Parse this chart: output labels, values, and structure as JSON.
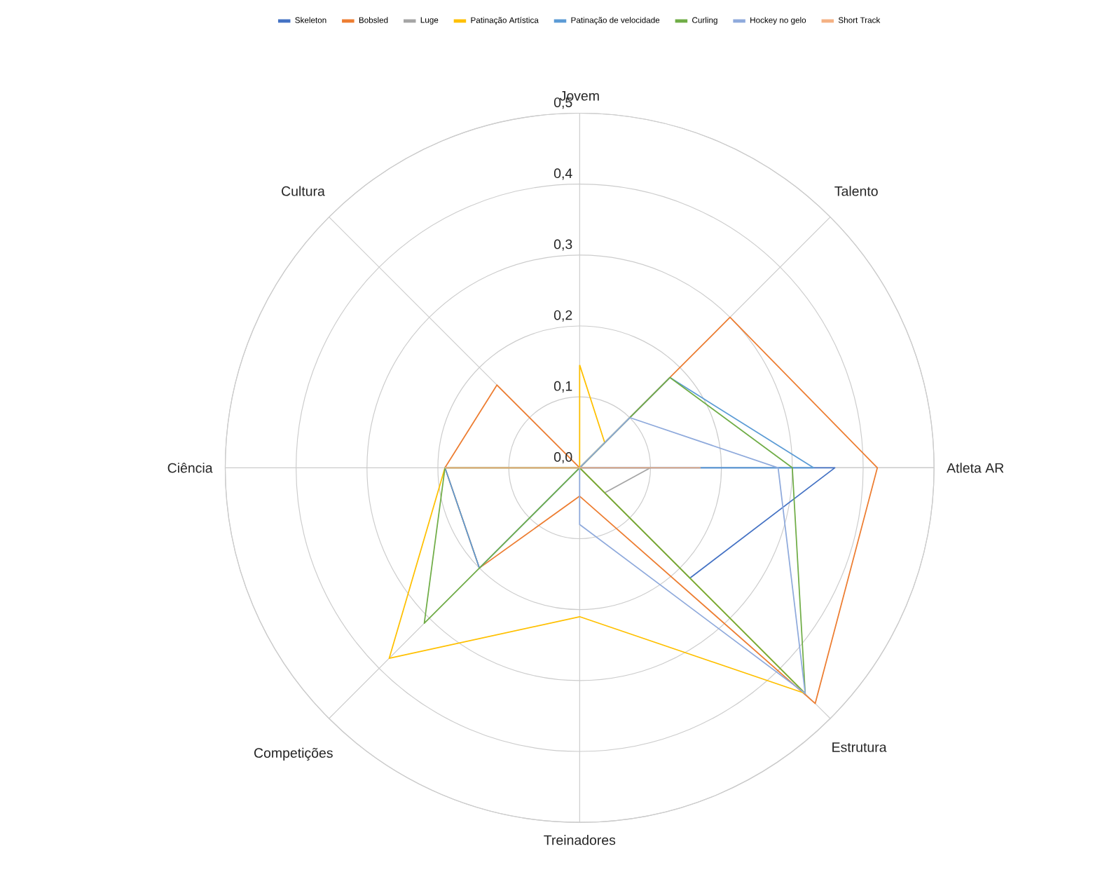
{
  "chart_data": {
    "type": "radar",
    "categories": [
      "Jovem",
      "Talento",
      "Atleta AR",
      "Estrutura",
      "Treinadores",
      "Competições",
      "Ciência",
      "Cultura"
    ],
    "series": [
      {
        "name": "Skeleton",
        "color": "#4472c4",
        "values": [
          0,
          0,
          0.36,
          0.22,
          0,
          0,
          0,
          0
        ]
      },
      {
        "name": "Bobsled",
        "color": "#ed7d31",
        "values": [
          0,
          0.3,
          0.42,
          0.47,
          0.04,
          0.2,
          0.19,
          0.165
        ]
      },
      {
        "name": "Luge",
        "color": "#a5a5a5",
        "values": [
          0,
          0,
          0.1,
          0.05,
          0,
          0,
          0,
          0
        ]
      },
      {
        "name": "Patinação Artística",
        "color": "#ffc000",
        "values": [
          0.145,
          0.05,
          0,
          0.45,
          0.21,
          0.38,
          0.19,
          0
        ]
      },
      {
        "name": "Patinação de velocidade",
        "color": "#5b9bd5",
        "values": [
          0,
          0.18,
          0.33,
          0,
          0,
          0.2,
          0.19,
          0
        ]
      },
      {
        "name": "Curling",
        "color": "#70ad47",
        "values": [
          0,
          0.18,
          0.3,
          0.45,
          0,
          0.31,
          0.19,
          0
        ]
      },
      {
        "name": "Hockey no gelo",
        "color": "#8faadc",
        "values": [
          0,
          0.1,
          0.28,
          0.45,
          0.08,
          0,
          0,
          0
        ]
      },
      {
        "name": "Short Track",
        "color": "#f4b183",
        "values": [
          0,
          0,
          0.17,
          0,
          0,
          0,
          0.19,
          0
        ]
      }
    ],
    "ylim": [
      0,
      0.5
    ],
    "yticks": [
      {
        "value": 0,
        "label": "0,0"
      },
      {
        "value": 0.1,
        "label": "0,1"
      },
      {
        "value": 0.2,
        "label": "0,2"
      },
      {
        "value": 0.3,
        "label": "0,3"
      },
      {
        "value": 0.4,
        "label": "0,4"
      },
      {
        "value": 0.5,
        "label": "0,5"
      }
    ],
    "grid": true,
    "legend": "top"
  }
}
